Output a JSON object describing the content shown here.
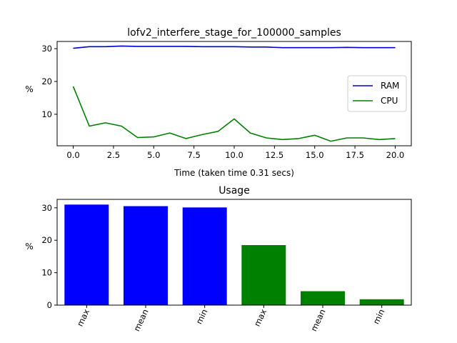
{
  "chart_data": [
    {
      "type": "line",
      "title": "lofv2_interfere_stage_for_100000_samples",
      "xlabel": "Time (taken time 0.31 secs)",
      "ylabel": "%",
      "xlim": [
        -1,
        21
      ],
      "ylim": [
        0.4,
        32.2
      ],
      "xticks": [
        0.0,
        2.5,
        5.0,
        7.5,
        10.0,
        12.5,
        15.0,
        17.5,
        20.0
      ],
      "xtick_labels": [
        "0.0",
        "2.5",
        "5.0",
        "7.5",
        "10.0",
        "12.5",
        "15.0",
        "17.5",
        "20.0"
      ],
      "yticks": [
        10,
        20,
        30
      ],
      "yticks_labels": [
        "10",
        "20",
        "30"
      ],
      "legend": "center-right",
      "grid": false,
      "x": [
        0,
        1,
        2,
        3,
        4,
        5,
        6,
        7,
        8,
        9,
        10,
        11,
        12,
        13,
        14,
        15,
        16,
        17,
        18,
        19,
        20
      ],
      "series": [
        {
          "name": "RAM",
          "color": "#0000cc",
          "values": [
            30.1,
            30.6,
            30.6,
            30.8,
            30.7,
            30.7,
            30.7,
            30.7,
            30.6,
            30.6,
            30.6,
            30.5,
            30.5,
            30.3,
            30.3,
            30.3,
            30.3,
            30.4,
            30.3,
            30.3,
            30.3
          ]
        },
        {
          "name": "CPU",
          "color": "#008000",
          "values": [
            18.5,
            6.4,
            7.4,
            6.4,
            2.9,
            3.1,
            4.3,
            2.6,
            3.8,
            4.8,
            8.6,
            4.3,
            2.8,
            2.3,
            2.6,
            3.6,
            1.8,
            2.8,
            2.8,
            2.3,
            2.6
          ]
        }
      ]
    },
    {
      "type": "bar",
      "title": "Usage",
      "ylabel": "%",
      "ylim": [
        0,
        32.6
      ],
      "yticks": [
        0,
        10,
        20,
        30
      ],
      "yticks_labels": [
        "0",
        "10",
        "20",
        "30"
      ],
      "grid": false,
      "categories": [
        "max",
        "mean",
        "min",
        "max",
        "mean",
        "min"
      ],
      "values": [
        31.0,
        30.5,
        30.1,
        18.5,
        4.3,
        1.8
      ],
      "colors": [
        "#0000ff",
        "#0000ff",
        "#0000ff",
        "#008000",
        "#008000",
        "#008000"
      ]
    }
  ]
}
